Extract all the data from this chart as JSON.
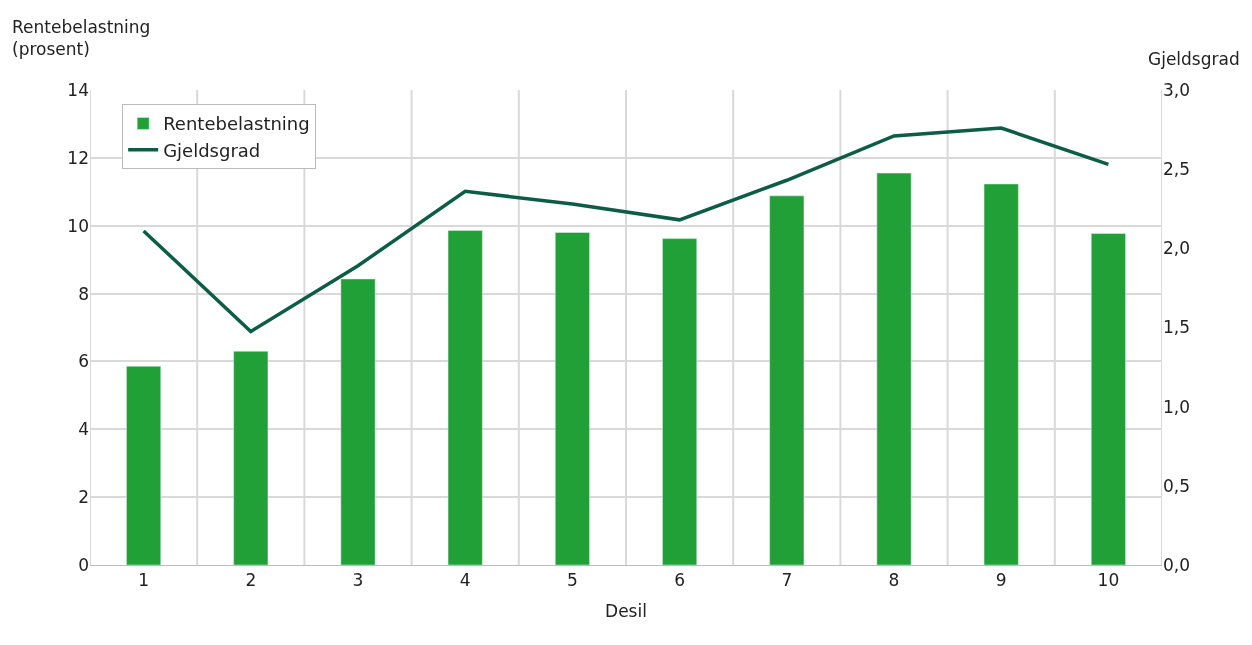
{
  "chart_data": {
    "type": "bar",
    "xlabel": "Desil",
    "ylabel": "Rentebelastning\n(prosent)",
    "y2label": "Gjeldsgrad",
    "categories": [
      "1",
      "2",
      "3",
      "4",
      "5",
      "6",
      "7",
      "8",
      "9",
      "10"
    ],
    "series": [
      {
        "name": "Rentebelastning",
        "color": "#21a038",
        "values": [
          5.86,
          6.3,
          8.43,
          9.86,
          9.8,
          9.62,
          10.88,
          11.55,
          11.23,
          9.77
        ]
      },
      {
        "name": "Gjeldsgrad",
        "type": "line",
        "axis": "y2",
        "color": "#0d5c46",
        "values": [
          2.11,
          1.475,
          1.89,
          2.36,
          2.28,
          2.18,
          2.43,
          2.71,
          2.76,
          2.53
        ]
      }
    ],
    "ylim": [
      0,
      14
    ],
    "yticks": [
      0,
      2,
      4,
      6,
      8,
      10,
      12,
      14
    ],
    "y2lim": [
      0,
      3
    ],
    "y2ticks": [
      {
        "value": 0,
        "label": "0,0"
      },
      {
        "value": 0.5,
        "label": "0,5"
      },
      {
        "value": 1,
        "label": "1,0"
      },
      {
        "value": 1.5,
        "label": "1,5"
      },
      {
        "value": 2,
        "label": "2,0"
      },
      {
        "value": 2.5,
        "label": "2,5"
      },
      {
        "value": 3,
        "label": "3,0"
      }
    ],
    "grid": true,
    "legend": "top left",
    "marker": "none",
    "line_style": "solid"
  }
}
